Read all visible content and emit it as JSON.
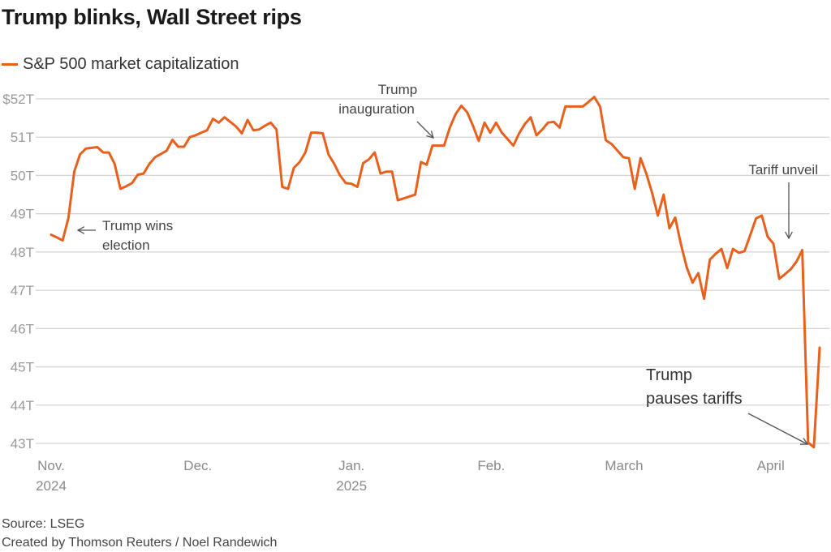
{
  "title": "Trump blinks, Wall Street rips",
  "footer": {
    "source": "Source: LSEG",
    "credit": "Created by Thomson Reuters / Noel Randewich"
  },
  "colors": {
    "series": "#e8601c",
    "grid": "#d4d4d4",
    "arrow": "#555555"
  },
  "chart_data": {
    "type": "line",
    "title": "Trump blinks, Wall Street rips",
    "xlabel": "",
    "ylabel": "",
    "ylim": [
      43,
      52
    ],
    "yticks": [
      43,
      44,
      45,
      46,
      47,
      48,
      49,
      50,
      51,
      52
    ],
    "ytick_labels": [
      "43T",
      "44T",
      "45T",
      "46T",
      "47T",
      "48T",
      "49T",
      "50T",
      "51T",
      "$52T"
    ],
    "x_range": [
      0,
      110
    ],
    "xticks": [
      {
        "x": 0,
        "line1": "Nov.",
        "line2": "2024"
      },
      {
        "x": 21,
        "line1": "Dec.",
        "line2": ""
      },
      {
        "x": 43,
        "line1": "Jan.",
        "line2": "2025"
      },
      {
        "x": 63,
        "line1": "Feb.",
        "line2": ""
      },
      {
        "x": 82,
        "line1": "March",
        "line2": ""
      },
      {
        "x": 103,
        "line1": "April",
        "line2": ""
      }
    ],
    "series": [
      {
        "name": "S&P 500 market capitalization",
        "values": [
          48.45,
          48.38,
          48.3,
          48.9,
          50.1,
          50.55,
          50.7,
          50.72,
          50.74,
          50.6,
          50.6,
          50.3,
          49.65,
          49.72,
          49.8,
          50.02,
          50.05,
          50.3,
          50.48,
          50.56,
          50.65,
          50.93,
          50.75,
          50.75,
          51.0,
          51.05,
          51.12,
          51.18,
          51.48,
          51.38,
          51.52,
          51.4,
          51.28,
          51.1,
          51.45,
          51.18,
          51.2,
          51.3,
          51.38,
          51.2,
          49.7,
          49.65,
          50.2,
          50.35,
          50.6,
          51.12,
          51.12,
          51.1,
          50.55,
          50.3,
          50.0,
          49.8,
          49.78,
          49.7,
          50.32,
          50.42,
          50.6,
          50.05,
          50.1,
          50.1,
          49.35,
          49.4,
          49.45,
          49.5,
          50.35,
          50.28,
          50.78,
          50.78,
          50.78,
          51.25,
          51.6,
          51.82,
          51.65,
          51.3,
          50.9,
          51.38,
          51.12,
          51.38,
          51.12,
          50.95,
          50.78,
          51.1,
          51.35,
          51.52,
          51.05,
          51.2,
          51.38,
          51.4,
          51.25,
          51.8,
          51.8,
          51.8,
          51.8,
          51.92,
          52.05,
          51.8,
          50.92,
          50.82,
          50.65,
          50.48,
          50.45,
          49.65,
          50.45,
          50.05,
          49.55,
          48.95,
          49.5,
          48.62,
          48.9,
          48.2,
          47.6,
          47.2,
          47.45,
          46.78,
          47.8,
          47.95,
          48.08,
          47.58,
          48.08,
          47.98,
          48.02,
          48.45,
          48.88,
          48.95,
          48.4,
          48.22,
          47.3,
          47.42,
          47.55,
          47.75,
          48.05,
          43.02,
          42.9,
          45.5
        ]
      }
    ],
    "annotations": [
      {
        "lines": [
          "Trump wins",
          "election"
        ]
      },
      {
        "lines": [
          "Trump",
          "inauguration"
        ]
      },
      {
        "lines": [
          "Tariff unveil"
        ]
      },
      {
        "lines": [
          "Trump",
          "pauses tariffs"
        ]
      }
    ]
  }
}
